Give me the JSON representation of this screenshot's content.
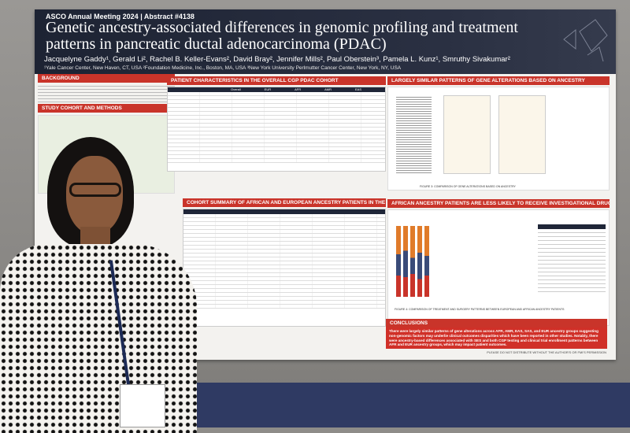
{
  "header": {
    "conference": "ASCO Annual Meeting 2024 | Abstract #4138",
    "title": "Genetic ancestry-associated differences in genomic profiling and treatment patterns in pancreatic ductal adenocarcinoma (PDAC)",
    "authors": "Jacquelyne Gaddy¹, Gerald Li², Rachel B. Keller-Evans², David Bray², Jennifer Mills², Paul Oberstein³, Pamela L. Kunz¹, Smruthy Sivakumar²",
    "affiliations": "¹Yale Cancer Center, New Haven, CT, USA ²Foundation Medicine, Inc., Boston, MA, USA ³New York University Perlmutter Cancer Center, New York, NY, USA"
  },
  "sections": {
    "background": "BACKGROUND",
    "study_cohort": "STUDY COHORT AND METHODS",
    "patient_characteristics": "PATIENT CHARACTERISTICS IN THE OVERALL CGP PDAC COHORT",
    "gene_alterations": "LARGELY SIMILAR PATTERNS OF GENE ALTERATIONS BASED ON ANCESTRY",
    "cohort_summary": "COHORT SUMMARY OF AFRICAN AND EUROPEAN ANCESTRY PATIENTS IN THE CGDB",
    "investigational": "AFRICAN ANCESTRY PATIENTS ARE LESS LIKELY TO RECEIVE INVESTIGATIONAL DRUGS",
    "conclusions": "CONCLUSIONS"
  },
  "table_headers": [
    "Overall",
    "EUR",
    "AFR",
    "AMR",
    "EAS",
    "SAS"
  ],
  "figure3_caption": "FIGURE 3: COMPARISON OF GENE ALTERATIONS BASED ON ANCESTRY",
  "figure4_caption": "FIGURE 4: COMPARISON OF TREATMENT AND SURGERY PATTERNS BETWEEN EUROPEAN AND AFRICAN ANCESTRY PATIENTS",
  "conclusions_text": "There were largely similar patterns of gene alterations across AFR, AMR, EAS, SAS, and EUR ancestry groups suggesting non-genomic factors may underlie clinical outcomes disparities which have been reported in other studies. Notably, there were ancestry-based differences associated with SES and both CGP testing and clinical trial enrollment patterns between AFR and EUR ancestry groups, which may impact patient outcomes.",
  "footer": "PLEASE DO NOT DISTRIBUTE WITHOUT THE AUTHOR'S OR FMI'S PERMISSION",
  "colors": {
    "header": "#1d2333",
    "section": "#c9342a",
    "poster": "#f3f2ef",
    "wall": "#8e8c89"
  }
}
